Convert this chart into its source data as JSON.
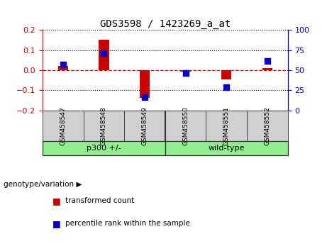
{
  "title": "GDS3598 / 1423269_a_at",
  "samples": [
    "GSM458547",
    "GSM458548",
    "GSM458549",
    "GSM458550",
    "GSM458551",
    "GSM458552"
  ],
  "red_values": [
    0.022,
    0.152,
    -0.138,
    -0.008,
    -0.044,
    0.012
  ],
  "blue_values_pct": [
    57,
    71,
    17,
    47,
    29,
    62
  ],
  "ylim_left": [
    -0.2,
    0.2
  ],
  "ylim_right": [
    0,
    100
  ],
  "yticks_left": [
    -0.2,
    -0.1,
    0.0,
    0.1,
    0.2
  ],
  "yticks_right": [
    0,
    25,
    50,
    75,
    100
  ],
  "left_color": "#cc0000",
  "right_color": "#0000cc",
  "legend_red_label": "transformed count",
  "legend_blue_label": "percentile rank within the sample",
  "genotype_label": "genotype/variation",
  "group1_label": "p300 +/-",
  "group2_label": "wild-type",
  "group_color": "#90EE90",
  "sample_bg_color": "#d0d0d0",
  "bar_width": 0.25
}
